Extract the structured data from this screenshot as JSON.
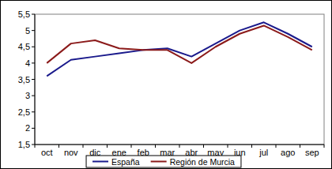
{
  "chart_data": {
    "type": "line",
    "categories": [
      "oct",
      "nov",
      "dic",
      "ene",
      "feb",
      "mar",
      "abr",
      "may",
      "jun",
      "jul",
      "ago",
      "sep"
    ],
    "series": [
      {
        "name": "España",
        "color": "#1a1a8c",
        "values": [
          3.6,
          4.1,
          4.2,
          4.3,
          4.4,
          4.45,
          4.2,
          4.6,
          5.0,
          5.25,
          4.9,
          4.5
        ]
      },
      {
        "name": "Región de Murcia",
        "color": "#8b1a1a",
        "values": [
          4.0,
          4.6,
          4.7,
          4.45,
          4.4,
          4.4,
          4.0,
          4.5,
          4.9,
          5.15,
          4.8,
          4.4
        ]
      }
    ],
    "ylim": [
      1.5,
      5.5
    ],
    "yticks": [
      {
        "value": 1.5,
        "label": "1,5"
      },
      2,
      {
        "value": 2.5,
        "label": "2,5"
      },
      3,
      {
        "value": 3.5,
        "label": "3,5"
      },
      4,
      {
        "value": 4.5,
        "label": "4,5"
      },
      5,
      {
        "value": 5.5,
        "label": "5,5"
      }
    ],
    "grid": false,
    "legend": "bottom"
  }
}
